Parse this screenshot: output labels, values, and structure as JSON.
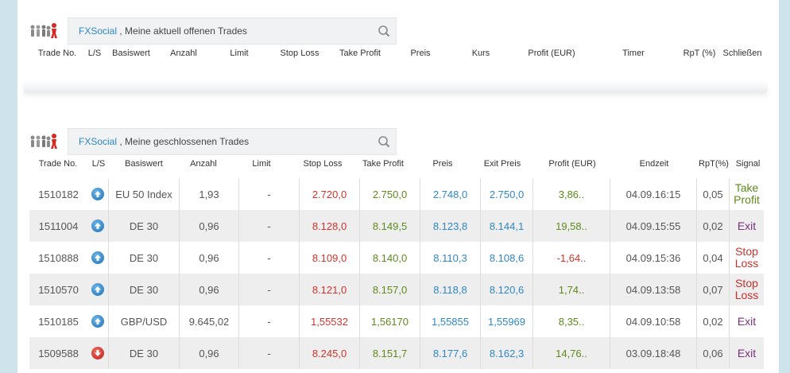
{
  "open_section": {
    "brand": "FXSocial",
    "title_rest": " , Meine aktuell offenen Trades",
    "headers": [
      "Trade No.",
      "L/S",
      "Basiswert",
      "Anzahl",
      "Limit",
      "Stop Loss",
      "Take Profit",
      "Preis",
      "Kurs",
      "Profit (EUR)",
      "Timer",
      "RpT (%)",
      "Schließen"
    ]
  },
  "closed_section": {
    "brand": "FXSocial",
    "title_rest": " , Meine geschlossenen Trades",
    "headers": [
      "Trade No.",
      "L/S",
      "Basiswert",
      "Anzahl",
      "Limit",
      "Stop Loss",
      "Take Profit",
      "Preis",
      "Exit Preis",
      "Profit (EUR)",
      "Endzeit",
      "RpT(%)",
      "Signal"
    ],
    "rows": [
      {
        "trade_no": "1510182",
        "direction": "up",
        "basiswert": "EU 50 Index",
        "anzahl": "1,93",
        "limit": "-",
        "stop_loss": "2.720,0",
        "take_profit": "2.750,0",
        "preis": "2.748,0",
        "exit_preis": "2.750,0",
        "profit": "3,86..",
        "endzeit": "04.09.16:15",
        "rpt": "0,05",
        "signal": "Take Profit",
        "signal_color": "green"
      },
      {
        "trade_no": "1511004",
        "direction": "up",
        "basiswert": "DE 30",
        "anzahl": "0,96",
        "limit": "-",
        "stop_loss": "8.128,0",
        "take_profit": "8.149,5",
        "preis": "8.123,8",
        "exit_preis": "8.144,1",
        "profit": "19,58..",
        "endzeit": "04.09.15:55",
        "rpt": "0,02",
        "signal": "Exit",
        "signal_color": "purple"
      },
      {
        "trade_no": "1510888",
        "direction": "up",
        "basiswert": "DE 30",
        "anzahl": "0,96",
        "limit": "-",
        "stop_loss": "8.109,0",
        "take_profit": "8.140,0",
        "preis": "8.110,3",
        "exit_preis": "8.108,6",
        "profit": "-1,64..",
        "endzeit": "04.09.15:36",
        "rpt": "0,04",
        "signal": "Stop Loss",
        "signal_color": "red"
      },
      {
        "trade_no": "1510570",
        "direction": "up",
        "basiswert": "DE 30",
        "anzahl": "0,96",
        "limit": "-",
        "stop_loss": "8.121,0",
        "take_profit": "8.157,0",
        "preis": "8.118,8",
        "exit_preis": "8.120,6",
        "profit": "1,74..",
        "endzeit": "04.09.13:58",
        "rpt": "0,07",
        "signal": "Stop Loss",
        "signal_color": "red"
      },
      {
        "trade_no": "1510185",
        "direction": "up",
        "basiswert": "GBP/USD",
        "anzahl": "9.645,02",
        "limit": "-",
        "stop_loss": "1,55532",
        "take_profit": "1,56170",
        "preis": "1,55855",
        "exit_preis": "1,55969",
        "profit": "8,35..",
        "endzeit": "04.09.10:58",
        "rpt": "0,02",
        "signal": "Exit",
        "signal_color": "purple"
      },
      {
        "trade_no": "1509588",
        "direction": "down",
        "basiswert": "DE 30",
        "anzahl": "0,96",
        "limit": "-",
        "stop_loss": "8.245,0",
        "take_profit": "8.151,7",
        "preis": "8.177,6",
        "exit_preis": "8.162,3",
        "profit": "14,76..",
        "endzeit": "03.09.18:48",
        "rpt": "0,06",
        "signal": "Exit",
        "signal_color": "purple"
      }
    ]
  },
  "colors": {
    "stop_loss": "#d0342c",
    "take_profit": "#5d8a1a",
    "price": "#2e87c7",
    "profit_positive": "#5d8a1a",
    "profit_negative": "#d0342c",
    "signal_exit": "#7d2e7d"
  },
  "icons": {
    "logo": "people-group-icon",
    "search": "search-icon",
    "long": "arrow-up-icon",
    "short": "arrow-down-icon"
  }
}
